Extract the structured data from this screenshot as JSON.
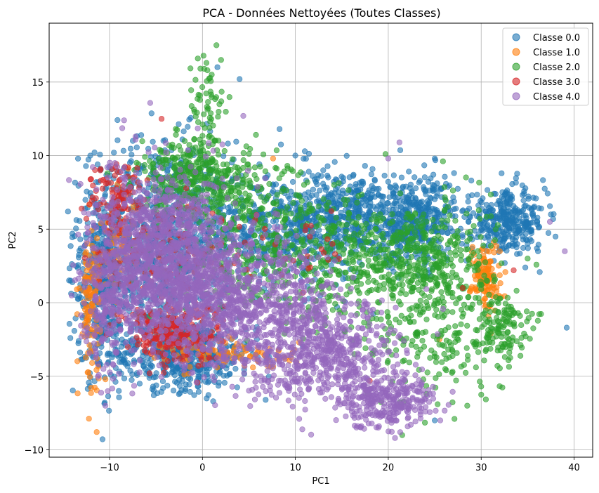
{
  "chart_data": {
    "type": "scatter",
    "title": "PCA - Données Nettoyées (Toutes Classes)",
    "xlabel": "PC1",
    "ylabel": "PC2",
    "xlim": [
      -16.5,
      42
    ],
    "ylim": [
      -10.5,
      19
    ],
    "xticks": [
      -10,
      0,
      10,
      20,
      30,
      40
    ],
    "yticks": [
      -10,
      -5,
      0,
      5,
      10,
      15
    ],
    "xtick_labels": [
      "−10",
      "0",
      "10",
      "20",
      "30",
      "40"
    ],
    "ytick_labels": [
      "−10",
      "−5",
      "0",
      "5",
      "10",
      "15"
    ],
    "grid": true,
    "legend_position": "top-right",
    "series": [
      {
        "name": "Classe 0.0",
        "color": "#1f77b4",
        "clusters": [
          {
            "cx": -5,
            "cy": 4,
            "sx": 4,
            "sy": 3.5,
            "n": 900
          },
          {
            "cx": -2,
            "cy": -3.5,
            "sx": 4,
            "sy": 1.2,
            "n": 500
          },
          {
            "cx": 8,
            "cy": 5,
            "sx": 5,
            "sy": 2,
            "n": 500
          },
          {
            "cx": 16,
            "cy": 6,
            "sx": 4,
            "sy": 1.5,
            "n": 400
          },
          {
            "cx": 23,
            "cy": 5.5,
            "sx": 3,
            "sy": 1.5,
            "n": 400
          },
          {
            "cx": 33,
            "cy": 5.5,
            "sx": 2,
            "sy": 1,
            "n": 300
          },
          {
            "cx": -11,
            "cy": 1,
            "sx": 1.2,
            "sy": 3,
            "n": 300
          }
        ],
        "points": [
          [
            -14,
            4.7
          ],
          [
            -11,
            9.1
          ],
          [
            -7.5,
            11
          ],
          [
            -1,
            10.4
          ],
          [
            4,
            15.2
          ],
          [
            8.3,
            11.8
          ],
          [
            10,
            10
          ],
          [
            13,
            9
          ],
          [
            17.5,
            9.3
          ],
          [
            25,
            9.8
          ],
          [
            32.2,
            8.8
          ],
          [
            35,
            4
          ],
          [
            36,
            3.7
          ],
          [
            37.5,
            6
          ],
          [
            38,
            4.5
          ],
          [
            39.2,
            -1.7
          ],
          [
            25,
            -8
          ],
          [
            6.8,
            -6.6
          ],
          [
            -9,
            -6
          ]
        ]
      },
      {
        "name": "Classe 1.0",
        "color": "#ff7f0e",
        "clusters": [
          {
            "cx": -12,
            "cy": 0,
            "sx": 0.6,
            "sy": 2.5,
            "n": 120
          },
          {
            "cx": 30.5,
            "cy": 1.8,
            "sx": 0.8,
            "sy": 1.2,
            "n": 120
          },
          {
            "cx": 3,
            "cy": -3.5,
            "sx": 3.5,
            "sy": 0.5,
            "n": 100
          },
          {
            "cx": -9,
            "cy": 4,
            "sx": 1,
            "sy": 1.5,
            "n": 60
          }
        ],
        "points": [
          [
            7.6,
            9.8
          ],
          [
            -8,
            9.1
          ],
          [
            25.5,
            -2.5
          ],
          [
            32,
            3.5
          ]
        ]
      },
      {
        "name": "Classe 2.0",
        "color": "#2ca02c",
        "clusters": [
          {
            "cx": -1,
            "cy": 8.5,
            "sx": 3,
            "sy": 1.2,
            "n": 350
          },
          {
            "cx": 0.5,
            "cy": 13,
            "sx": 1,
            "sy": 2,
            "n": 60
          },
          {
            "cx": 10,
            "cy": 3,
            "sx": 6,
            "sy": 2,
            "n": 400
          },
          {
            "cx": 23,
            "cy": 3,
            "sx": 4,
            "sy": 2,
            "n": 450
          },
          {
            "cx": 25,
            "cy": -2,
            "sx": 4,
            "sy": 2.5,
            "n": 220
          },
          {
            "cx": 32,
            "cy": -1.5,
            "sx": 1.5,
            "sy": 1,
            "n": 120
          },
          {
            "cx": 5,
            "cy": 7,
            "sx": 4,
            "sy": 1.5,
            "n": 150
          }
        ],
        "points": [
          [
            1.5,
            17.5
          ],
          [
            -0.5,
            16.6
          ],
          [
            2,
            16.5
          ],
          [
            1,
            15.5
          ],
          [
            19.7,
            10.1
          ],
          [
            21.5,
            -9
          ],
          [
            28.5,
            -7
          ],
          [
            30,
            -5.7
          ],
          [
            35,
            3
          ],
          [
            33,
            -2.5
          ]
        ]
      },
      {
        "name": "Classe 3.0",
        "color": "#d62728",
        "clusters": [
          {
            "cx": -3,
            "cy": -2,
            "sx": 2.5,
            "sy": 1,
            "n": 250
          },
          {
            "cx": -9,
            "cy": 7,
            "sx": 1.5,
            "sy": 1.2,
            "n": 100
          },
          {
            "cx": -6,
            "cy": 3,
            "sx": 3,
            "sy": 2,
            "n": 100
          },
          {
            "cx": 8,
            "cy": 4,
            "sx": 5,
            "sy": 1.5,
            "n": 40
          }
        ],
        "points": [
          [
            -4.4,
            12.5
          ],
          [
            -11,
            9
          ],
          [
            -13,
            6.4
          ],
          [
            -12.5,
            5.7
          ],
          [
            28,
            1
          ],
          [
            33.5,
            2.2
          ],
          [
            18,
            -5.3
          ]
        ]
      },
      {
        "name": "Classe 4.0",
        "color": "#9467bd",
        "clusters": [
          {
            "cx": -4,
            "cy": 3,
            "sx": 3.8,
            "sy": 2.8,
            "n": 1300
          },
          {
            "cx": 4,
            "cy": 0,
            "sx": 5,
            "sy": 2.2,
            "n": 800
          },
          {
            "cx": 13,
            "cy": -3.5,
            "sx": 4,
            "sy": 1.8,
            "n": 600
          },
          {
            "cx": 20,
            "cy": -6.5,
            "sx": 2.5,
            "sy": 1,
            "n": 300
          },
          {
            "cx": -10,
            "cy": 0,
            "sx": 1.5,
            "sy": 2.5,
            "n": 200
          }
        ],
        "points": [
          [
            21.2,
            10.9
          ],
          [
            4.4,
            12.7
          ],
          [
            37.4,
            5.5
          ],
          [
            39,
            3.5
          ],
          [
            20,
            9.8
          ],
          [
            19,
            -8.4
          ],
          [
            24,
            -7.4
          ]
        ]
      }
    ]
  }
}
